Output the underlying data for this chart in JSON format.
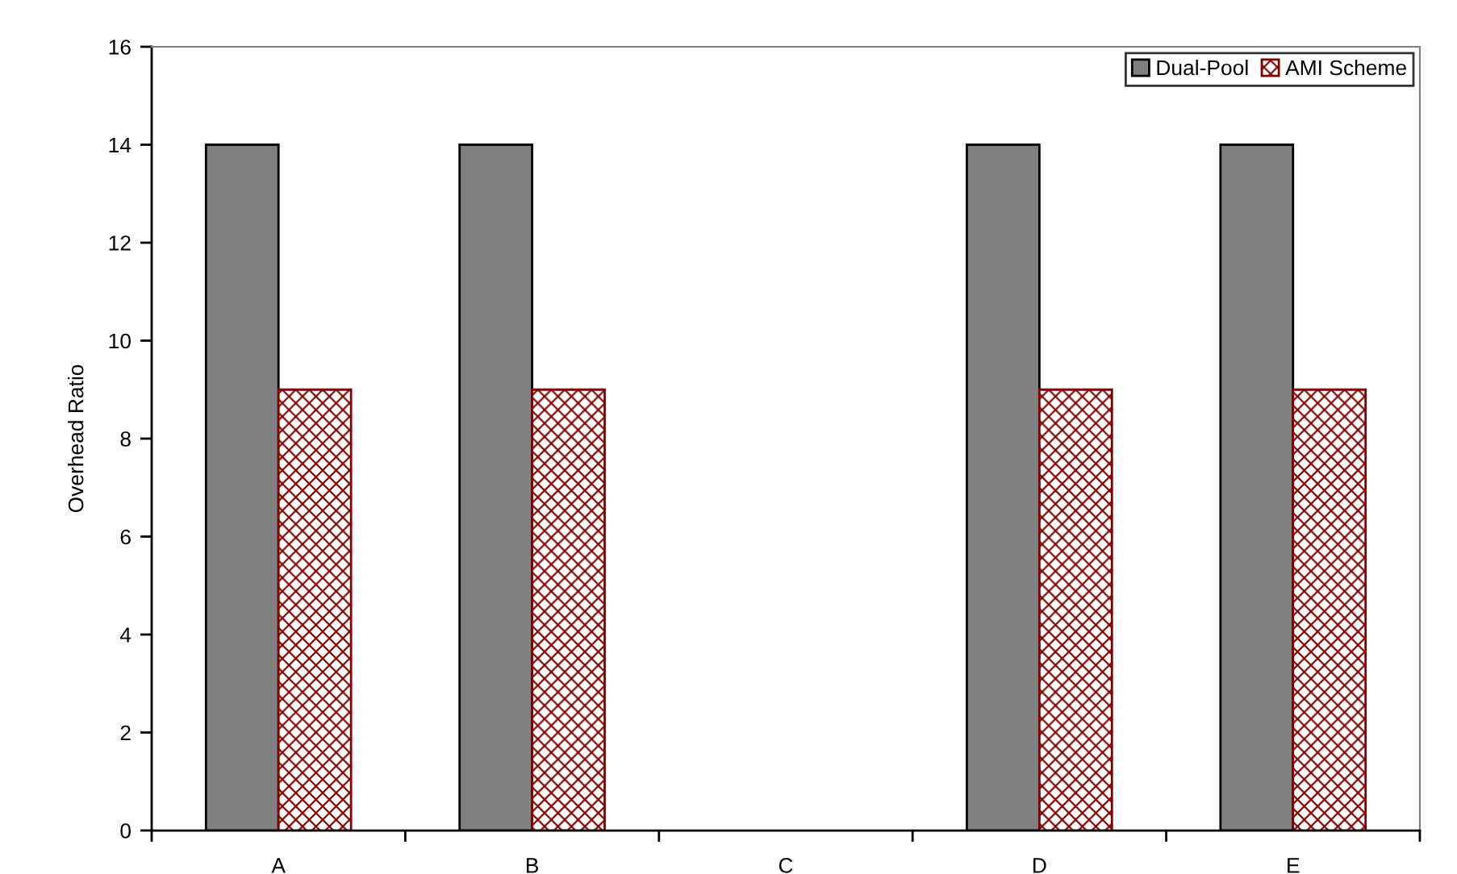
{
  "chart_data": {
    "type": "bar",
    "ylabel": "Overhead Ratio",
    "categories": [
      "A",
      "B",
      "C",
      "D",
      "E"
    ],
    "series": [
      {
        "name": "Dual-Pool",
        "color": "#808080",
        "values": [
          14,
          14,
          null,
          14,
          14
        ]
      },
      {
        "name": "AMI Scheme",
        "color": "#800000",
        "values": [
          9,
          9,
          null,
          9,
          9
        ]
      }
    ],
    "ylim": [
      0,
      16
    ],
    "yticks": [
      0,
      2,
      4,
      6,
      8,
      10,
      12,
      14,
      16
    ],
    "grid": false,
    "legend": "top right"
  }
}
